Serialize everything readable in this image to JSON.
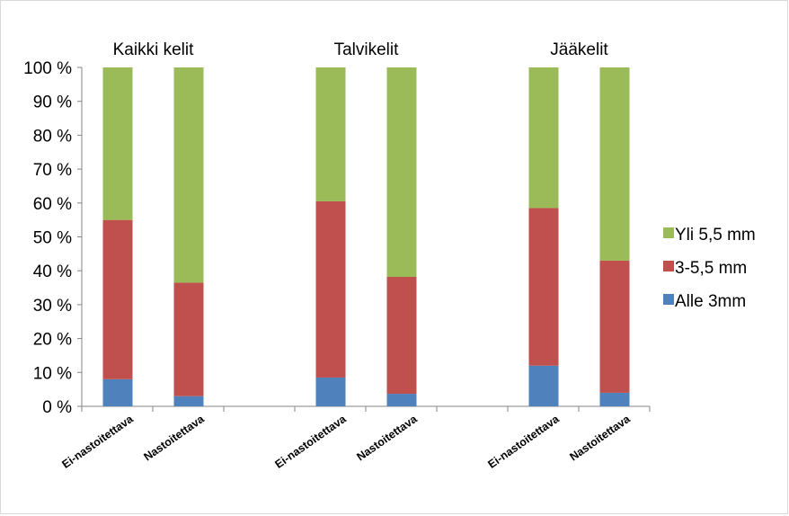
{
  "chart_data": {
    "type": "bar",
    "stacked": true,
    "percent_scale": true,
    "groups": [
      {
        "label": "Kaikki kelit",
        "categories": [
          "Ei-nastoitettava",
          "Nastoitettava"
        ]
      },
      {
        "label": "Talvikelit",
        "categories": [
          "Ei-nastoitettava",
          "Nastoitettava"
        ]
      },
      {
        "label": "Jääkelit",
        "categories": [
          "Ei-nastoitettava",
          "Nastoitettava"
        ]
      }
    ],
    "series": [
      {
        "name": "Alle 3mm",
        "color": "#4f81bd",
        "values": [
          8,
          3,
          8.5,
          3.7,
          12,
          4
        ]
      },
      {
        "name": "3-5,5 mm",
        "color": "#c0504d",
        "values": [
          47,
          33.5,
          52,
          34.5,
          46.5,
          39
        ]
      },
      {
        "name": "Yli 5,5 mm",
        "color": "#9bbb59",
        "values": [
          45,
          63.5,
          39.5,
          61.8,
          41.5,
          57
        ]
      }
    ],
    "ylim": [
      0,
      100
    ],
    "yticks": [
      "0 %",
      "10 %",
      "20 %",
      "30 %",
      "40 %",
      "50 %",
      "60 %",
      "70 %",
      "80 %",
      "90 %",
      "100 %"
    ],
    "legend": {
      "position": "right",
      "order": [
        "Yli 5,5 mm",
        "3-5,5 mm",
        "Alle 3mm"
      ]
    },
    "grid": false
  }
}
